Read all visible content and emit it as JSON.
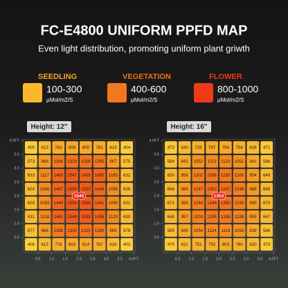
{
  "header": {
    "title": "FC-E4800 UNIFORM PPFD MAP",
    "subtitle": "Even light distribution, promoting uniform plant griwth"
  },
  "legend": [
    {
      "stage": "SEEDLING",
      "range": "100-300",
      "unit": "μMol/m2/S",
      "color": "#f9b92b",
      "label_color": "#f6a623"
    },
    {
      "stage": "VEGETATION",
      "range": "400-600",
      "unit": "μMol/m2/S",
      "color": "#f2781e",
      "label_color": "#f0701c"
    },
    {
      "stage": "FLOWER",
      "range": "800-1000",
      "unit": "μMol/m2/S",
      "color": "#ee3a16",
      "label_color": "#ee3a16"
    }
  ],
  "chart_data": [
    {
      "type": "heatmap",
      "title": "Height: 12\"",
      "center_value": 1545,
      "color_scale": [
        "#fbcf3a",
        "#f59a22",
        "#ef5a1a"
      ],
      "xlim": [
        0,
        4
      ],
      "ylim": [
        0,
        4
      ],
      "xticks": [
        0.5,
        {
          "value": 1,
          "label": "1.0"
        },
        1.5,
        {
          "value": 2,
          "label": "2.0"
        },
        2.5,
        {
          "value": 3,
          "label": "3.0"
        },
        3.5,
        {
          "value": 4,
          "label": "4.0FT"
        }
      ],
      "yticks": [
        0.5,
        {
          "value": 1,
          "label": "1.0"
        },
        1.5,
        {
          "value": 2,
          "label": "2.0"
        },
        2.5,
        {
          "value": 3,
          "label": "3.0"
        },
        3.5,
        {
          "value": 4,
          "label": "4.0FT"
        }
      ],
      "values": [
        [
          405,
          615,
          783,
          808,
          805,
          781,
          613,
          404
        ],
        [
          573,
          968,
          1266,
          1329,
          1326,
          1265,
          967,
          575
        ],
        [
          633,
          1117,
          1460,
          1547,
          1458,
          1455,
          1185,
          632
        ],
        [
          624,
          1086,
          1447,
          1558,
          1553,
          1446,
          1085,
          626
        ],
        [
          629,
          1083,
          1444,
          1556,
          1556,
          1441,
          1090,
          631
        ],
        [
          631,
          1118,
          1461,
          1546,
          1539,
          1456,
          1120,
          630
        ],
        [
          577,
          966,
          1268,
          1330,
          1325,
          1260,
          965,
          578
        ],
        [
          406,
          615,
          778,
          803,
          814,
          787,
          616,
          402
        ]
      ]
    },
    {
      "type": "heatmap",
      "title": "Height: 16\"",
      "center_value": 1353,
      "color_scale": [
        "#fbcf3a",
        "#f59a22",
        "#ef5a1a"
      ],
      "xlim": [
        0,
        4
      ],
      "ylim": [
        0,
        4
      ],
      "xticks": [
        0.5,
        {
          "value": 1,
          "label": "1.0"
        },
        1.5,
        {
          "value": 2,
          "label": "2.0"
        },
        2.5,
        {
          "value": 3,
          "label": "3.0"
        },
        3.5,
        {
          "value": 4,
          "label": "4.0FT"
        }
      ],
      "yticks": [
        0.5,
        {
          "value": 1,
          "label": "1.0"
        },
        1.5,
        {
          "value": 2,
          "label": "2.0"
        },
        2.5,
        {
          "value": 3,
          "label": "3.0"
        },
        3.5,
        {
          "value": 4,
          "label": "4.0FT"
        }
      ],
      "values": [
        [
          472,
          630,
          726,
          797,
          794,
          754,
          628,
          471
        ],
        [
          584,
          842,
          1052,
          1113,
          1120,
          1051,
          841,
          586
        ],
        [
          650,
          956,
          1202,
          1296,
          1293,
          1200,
          954,
          649
        ],
        [
          666,
          989,
          1247,
          1352,
          1347,
          1246,
          988,
          668
        ],
        [
          671,
          986,
          1244,
          1344,
          1350,
          1243,
          990,
          670
        ],
        [
          648,
          957,
          1203,
          1295,
          1288,
          1198,
          959,
          647
        ],
        [
          585,
          840,
          1054,
          1124,
          1119,
          1056,
          839,
          586
        ],
        [
          470,
          631,
          751,
          792,
          803,
          760,
          630,
          470
        ]
      ]
    }
  ]
}
